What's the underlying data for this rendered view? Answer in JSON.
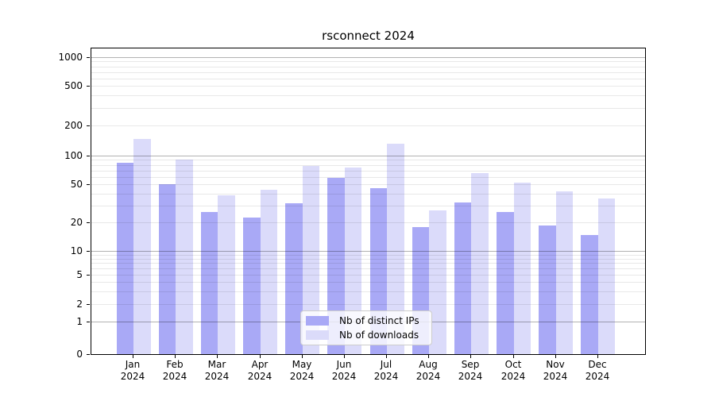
{
  "title": "rsconnect 2024",
  "chart_data": {
    "type": "bar",
    "scale": "symlog",
    "title": "rsconnect 2024",
    "xlabel": "",
    "ylabel": "",
    "categories": [
      "Jan",
      "Feb",
      "Mar",
      "Apr",
      "May",
      "Jun",
      "Jul",
      "Aug",
      "Sep",
      "Oct",
      "Nov",
      "Dec"
    ],
    "year_label": "2024",
    "series": [
      {
        "name": "Nb of distinct IPs",
        "color": "#a9a9f6",
        "values": [
          85,
          51,
          26,
          23,
          32,
          60,
          46,
          18,
          33,
          26,
          19,
          15
        ]
      },
      {
        "name": "Nb of downloads",
        "color": "#dbdbfa",
        "values": [
          150,
          93,
          39,
          45,
          80,
          76,
          135,
          27,
          67,
          53,
          43,
          36
        ]
      }
    ],
    "y_ticks": [
      0,
      1,
      2,
      5,
      10,
      20,
      50,
      100,
      200,
      500,
      1000
    ],
    "y_minor_ticks": [
      3,
      4,
      6,
      7,
      8,
      9,
      30,
      40,
      60,
      70,
      80,
      90,
      300,
      400,
      600,
      700,
      800,
      900
    ],
    "ylim": [
      0,
      1000
    ],
    "grid": true,
    "legend_position": "lower center"
  }
}
